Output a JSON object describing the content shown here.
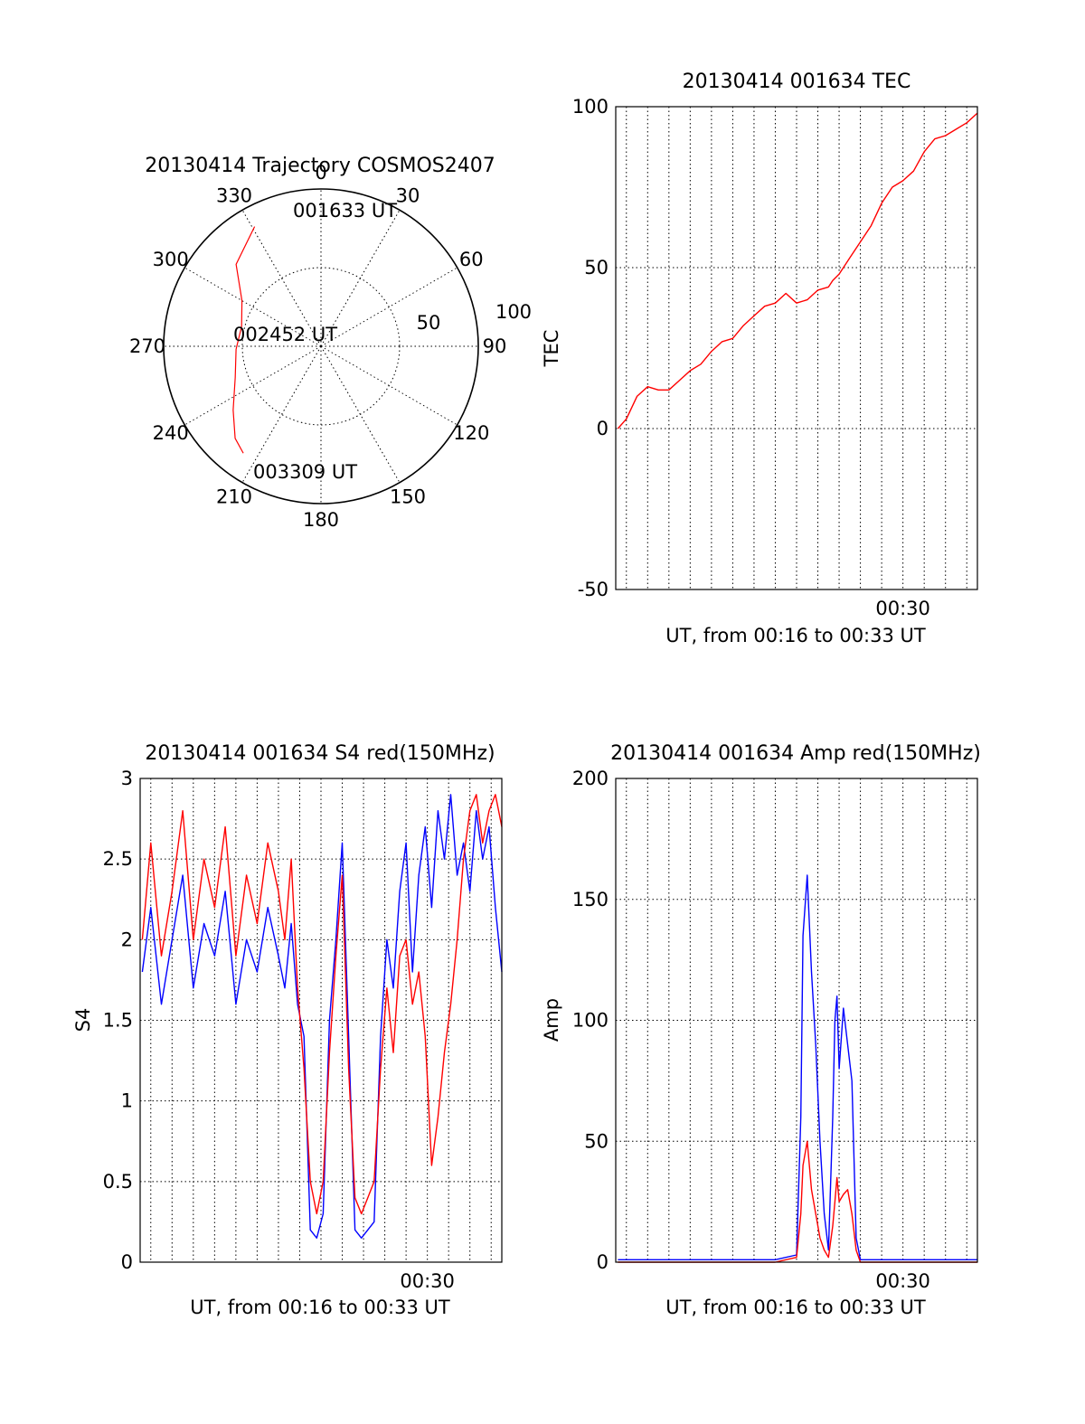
{
  "chart_data": [
    {
      "type": "polar",
      "title": "20130414 Trajectory COSMOS2407",
      "azimuth_labels": [
        "0",
        "30",
        "60",
        "90",
        "120",
        "150",
        "180",
        "210",
        "240",
        "270",
        "300",
        "330"
      ],
      "radial_labels": [
        "50",
        "100"
      ],
      "radial_range": [
        0,
        100
      ],
      "series": [
        {
          "color": "#ff0000",
          "points": [
            {
              "az": 331,
              "r": 87
            },
            {
              "az": 314,
              "r": 75
            },
            {
              "az": 300,
              "r": 58
            },
            {
              "az": 284,
              "r": 52
            },
            {
              "az": 268,
              "r": 54
            },
            {
              "az": 250,
              "r": 58
            },
            {
              "az": 234,
              "r": 69
            },
            {
              "az": 223,
              "r": 80
            },
            {
              "az": 216,
              "r": 84
            }
          ]
        }
      ],
      "annotations": [
        {
          "text": "001633 UT",
          "az": 331,
          "r": 87
        },
        {
          "text": "002452 UT",
          "az": 0,
          "r": 0
        },
        {
          "text": "003309 UT",
          "az": 216,
          "r": 84
        }
      ]
    },
    {
      "type": "line",
      "title": "20130414 001634 TEC",
      "ylabel": "TEC",
      "xlabel": "UT, from 00:16 to 00:33 UT",
      "x_tick_labels": [
        {
          "x": 30,
          "label": "00:30"
        }
      ],
      "xlim": [
        16.5,
        33.5
      ],
      "ylim": [
        -50,
        100
      ],
      "y_ticks": [
        -50,
        0,
        50,
        100
      ],
      "grid": true,
      "series": [
        {
          "color": "#ff0000",
          "x": [
            16.6,
            17.0,
            17.5,
            18.0,
            18.5,
            19.0,
            19.5,
            20.0,
            20.5,
            21.0,
            21.5,
            22.0,
            22.5,
            23.0,
            23.5,
            24.0,
            24.5,
            25.0,
            25.5,
            26.0,
            26.5,
            26.7,
            27.0,
            27.5,
            28.0,
            28.5,
            29.0,
            29.5,
            30.0,
            30.5,
            31.0,
            31.5,
            32.0,
            32.5,
            33.0,
            33.5
          ],
          "y": [
            0,
            3,
            10,
            13,
            12,
            12,
            15,
            18,
            20,
            24,
            27,
            28,
            32,
            35,
            38,
            39,
            42,
            39,
            40,
            43,
            44,
            46,
            48,
            53,
            58,
            63,
            70,
            75,
            77,
            80,
            86,
            90,
            91,
            93,
            95,
            98
          ]
        }
      ]
    },
    {
      "type": "line",
      "title": "20130414 001634 S4 red(150MHz)",
      "ylabel": "S4",
      "xlabel": "UT, from 00:16 to 00:33 UT",
      "x_tick_labels": [
        {
          "x": 30,
          "label": "00:30"
        }
      ],
      "xlim": [
        16.5,
        33.5
      ],
      "ylim": [
        0,
        3
      ],
      "y_ticks": [
        0,
        0.5,
        1,
        1.5,
        2,
        2.5,
        3
      ],
      "grid": true,
      "series": [
        {
          "color": "#0000ff",
          "x": [
            16.6,
            17.0,
            17.5,
            18.0,
            18.5,
            19.0,
            19.5,
            20.0,
            20.5,
            21.0,
            21.5,
            22.0,
            22.5,
            23.0,
            23.3,
            23.6,
            23.9,
            24.2,
            24.5,
            24.8,
            25.1,
            25.4,
            25.7,
            26.0,
            26.3,
            26.6,
            26.9,
            27.2,
            27.5,
            27.8,
            28.1,
            28.4,
            28.7,
            29.0,
            29.3,
            29.6,
            29.9,
            30.2,
            30.5,
            30.8,
            31.1,
            31.4,
            31.7,
            32.0,
            32.3,
            32.6,
            32.9,
            33.2,
            33.5
          ],
          "y": [
            1.8,
            2.2,
            1.6,
            2.0,
            2.4,
            1.7,
            2.1,
            1.9,
            2.3,
            1.6,
            2.0,
            1.8,
            2.2,
            1.9,
            1.7,
            2.1,
            1.6,
            1.4,
            0.2,
            0.15,
            0.3,
            1.5,
            2.0,
            2.6,
            1.4,
            0.2,
            0.15,
            0.2,
            0.25,
            1.4,
            2.0,
            1.7,
            2.3,
            2.6,
            1.8,
            2.4,
            2.7,
            2.2,
            2.8,
            2.5,
            2.9,
            2.4,
            2.6,
            2.3,
            2.8,
            2.5,
            2.7,
            2.2,
            1.8
          ]
        },
        {
          "color": "#ff0000",
          "x": [
            16.6,
            17.0,
            17.5,
            18.0,
            18.5,
            19.0,
            19.5,
            20.0,
            20.5,
            21.0,
            21.5,
            22.0,
            22.5,
            23.0,
            23.3,
            23.6,
            23.9,
            24.2,
            24.5,
            24.8,
            25.1,
            25.4,
            25.7,
            26.0,
            26.3,
            26.6,
            26.9,
            27.2,
            27.5,
            27.8,
            28.1,
            28.4,
            28.7,
            29.0,
            29.3,
            29.6,
            29.9,
            30.2,
            30.5,
            30.8,
            31.1,
            31.4,
            31.7,
            32.0,
            32.3,
            32.6,
            32.9,
            33.2,
            33.5
          ],
          "y": [
            2.0,
            2.6,
            1.9,
            2.3,
            2.8,
            2.0,
            2.5,
            2.2,
            2.7,
            1.9,
            2.4,
            2.1,
            2.6,
            2.3,
            2.0,
            2.5,
            1.7,
            1.2,
            0.5,
            0.3,
            0.5,
            1.3,
            1.9,
            2.4,
            1.2,
            0.4,
            0.3,
            0.4,
            0.5,
            1.2,
            1.7,
            1.3,
            1.9,
            2.0,
            1.6,
            1.8,
            1.4,
            0.6,
            0.9,
            1.3,
            1.6,
            2.0,
            2.5,
            2.8,
            2.9,
            2.6,
            2.8,
            2.9,
            2.7
          ]
        }
      ]
    },
    {
      "type": "line",
      "title": "20130414 001634 Amp red(150MHz)",
      "ylabel": "Amp",
      "xlabel": "UT, from 00:16 to 00:33 UT",
      "x_tick_labels": [
        {
          "x": 30,
          "label": "00:30"
        }
      ],
      "xlim": [
        16.5,
        33.5
      ],
      "ylim": [
        0,
        200
      ],
      "y_ticks": [
        0,
        50,
        100,
        150,
        200
      ],
      "grid": true,
      "series": [
        {
          "color": "#0000ff",
          "x": [
            16.6,
            18.0,
            20.0,
            22.0,
            24.0,
            25.0,
            25.2,
            25.3,
            25.5,
            25.7,
            25.9,
            26.1,
            26.3,
            26.5,
            26.7,
            26.8,
            26.9,
            27.0,
            27.2,
            27.4,
            27.6,
            27.8,
            28.0,
            28.5,
            30.0,
            32.0,
            33.5
          ],
          "y": [
            1,
            1,
            1,
            1,
            1,
            3,
            60,
            135,
            160,
            120,
            90,
            50,
            20,
            5,
            60,
            100,
            110,
            80,
            105,
            90,
            75,
            10,
            1,
            1,
            1,
            1,
            1
          ]
        },
        {
          "color": "#ff0000",
          "x": [
            16.6,
            18.0,
            20.0,
            22.0,
            24.0,
            25.0,
            25.2,
            25.3,
            25.5,
            25.7,
            25.9,
            26.1,
            26.3,
            26.5,
            26.7,
            26.8,
            26.9,
            27.0,
            27.2,
            27.4,
            27.6,
            27.8,
            28.0,
            28.5,
            30.0,
            32.0,
            33.5
          ],
          "y": [
            0,
            0,
            0,
            0,
            0,
            2,
            20,
            40,
            50,
            30,
            20,
            10,
            5,
            2,
            15,
            25,
            35,
            25,
            28,
            30,
            20,
            5,
            0,
            0,
            0,
            0,
            0
          ]
        }
      ]
    }
  ]
}
